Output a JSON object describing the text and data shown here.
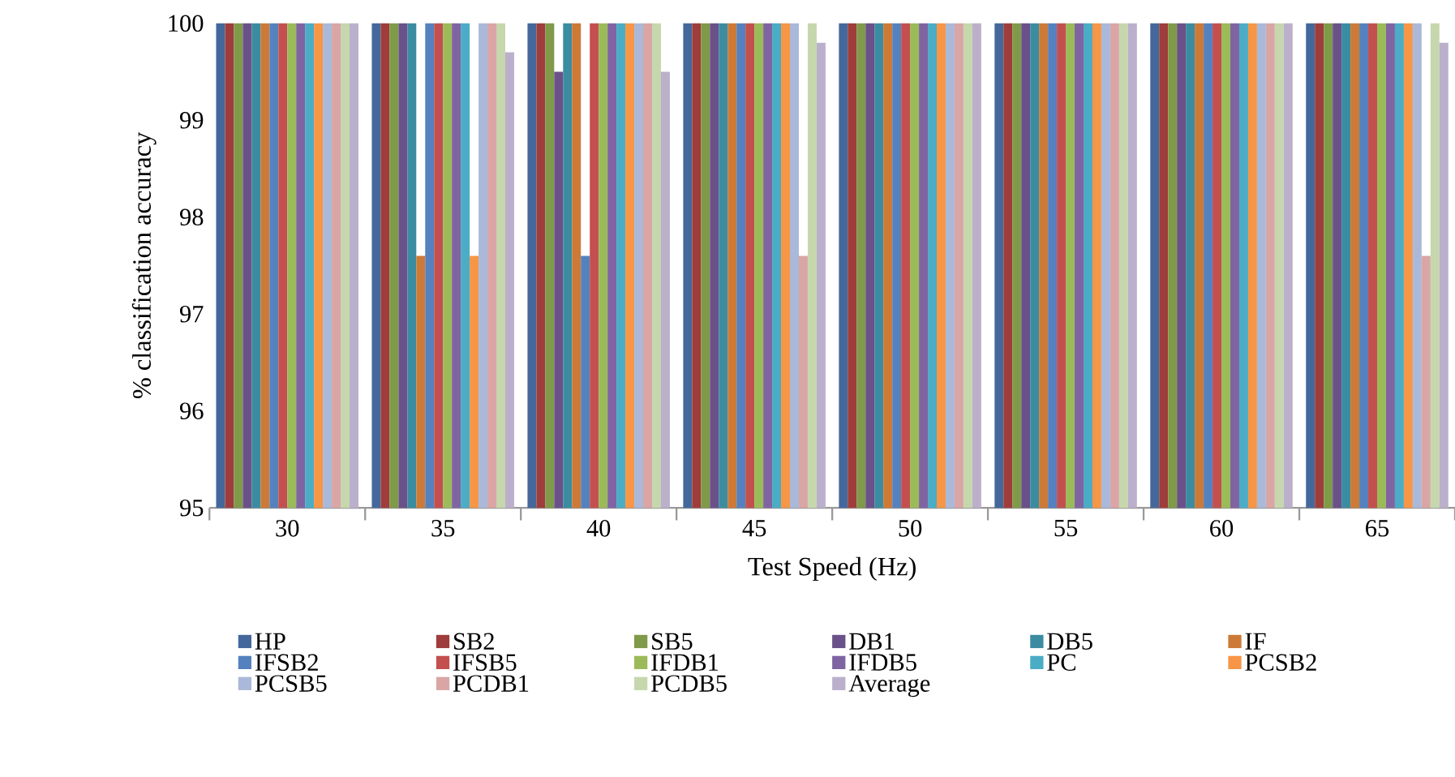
{
  "chart_data": {
    "type": "bar",
    "xlabel": "Test Speed (Hz)",
    "ylabel": "% classification accuracy",
    "categories": [
      "30",
      "35",
      "40",
      "45",
      "50",
      "55",
      "60",
      "65"
    ],
    "ylim": [
      95,
      100
    ],
    "yticks": [
      95,
      96,
      97,
      98,
      99,
      100
    ],
    "legend": "bottom",
    "grid": false,
    "series": [
      {
        "name": "HP",
        "color": "#44689b",
        "values": [
          100,
          100,
          100,
          100,
          100,
          100,
          100,
          100
        ]
      },
      {
        "name": "SB2",
        "color": "#9e3d3b",
        "values": [
          100,
          100,
          100,
          100,
          100,
          100,
          100,
          100
        ]
      },
      {
        "name": "SB5",
        "color": "#7f9a48",
        "values": [
          100,
          100,
          100,
          100,
          100,
          100,
          100,
          100
        ]
      },
      {
        "name": "DB1",
        "color": "#6a5189",
        "values": [
          100,
          100,
          99.5,
          100,
          100,
          100,
          100,
          100
        ]
      },
      {
        "name": "DB5",
        "color": "#3b8ca0",
        "values": [
          100,
          100,
          100,
          100,
          100,
          100,
          100,
          100
        ]
      },
      {
        "name": "IF",
        "color": "#cd7a37",
        "values": [
          100,
          97.6,
          100,
          100,
          100,
          100,
          100,
          100
        ]
      },
      {
        "name": "IFSB2",
        "color": "#5582be",
        "values": [
          100,
          100,
          97.6,
          100,
          100,
          100,
          100,
          100
        ]
      },
      {
        "name": "IFSB5",
        "color": "#c3504e",
        "values": [
          100,
          100,
          100,
          100,
          100,
          100,
          100,
          100
        ]
      },
      {
        "name": "IFDB1",
        "color": "#9bbb59",
        "values": [
          100,
          100,
          100,
          100,
          100,
          100,
          100,
          100
        ]
      },
      {
        "name": "IFDB5",
        "color": "#8064a2",
        "values": [
          100,
          100,
          100,
          100,
          100,
          100,
          100,
          100
        ]
      },
      {
        "name": "PC",
        "color": "#4bacc6",
        "values": [
          100,
          100,
          100,
          100,
          100,
          100,
          100,
          100
        ]
      },
      {
        "name": "PCSB2",
        "color": "#f79646",
        "values": [
          100,
          97.6,
          100,
          100,
          100,
          100,
          100,
          100
        ]
      },
      {
        "name": "PCSB5",
        "color": "#aab9d9",
        "values": [
          100,
          100,
          100,
          100,
          100,
          100,
          100,
          100
        ]
      },
      {
        "name": "PCDB1",
        "color": "#d9a6a5",
        "values": [
          100,
          100,
          100,
          97.6,
          100,
          100,
          100,
          97.6
        ]
      },
      {
        "name": "PCDB5",
        "color": "#c7d7ad",
        "values": [
          100,
          100,
          100,
          100,
          100,
          100,
          100,
          100
        ]
      },
      {
        "name": "Average",
        "color": "#bbb0cc",
        "values": [
          100,
          99.7,
          99.5,
          99.8,
          100,
          100,
          100,
          99.8
        ]
      }
    ]
  }
}
